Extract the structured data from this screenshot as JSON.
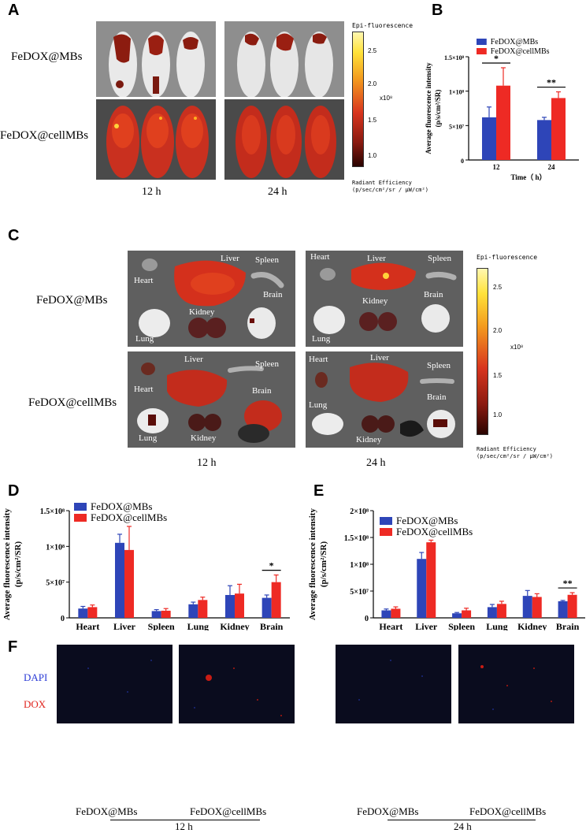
{
  "panels": {
    "A": "A",
    "B": "B",
    "C": "C",
    "D": "D",
    "E": "E",
    "F": "F"
  },
  "panelA": {
    "rows": [
      "FeDOX@MBs",
      "FeDOX@cellMBs"
    ],
    "times": [
      "12 h",
      "24 h"
    ],
    "colorbar": {
      "title": "Epi-fluorescence",
      "ticks": [
        "2.5",
        "2.0",
        "1.5",
        "1.0"
      ],
      "multiplier": "x10⁸",
      "unit_line1": "Radiant Efficiency",
      "unit_line2": "(p/sec/cm²/sr / µW/cm²)"
    }
  },
  "panelC": {
    "rows": [
      "FeDOX@MBs",
      "FeDOX@cellMBs"
    ],
    "times": [
      "12 h",
      "24 h"
    ],
    "organs": [
      "Heart",
      "Liver",
      "Spleen",
      "Kidney",
      "Brain",
      "Lung"
    ],
    "colorbar": {
      "title": "Epi-fluorescence",
      "ticks": [
        "2.5",
        "2.0",
        "1.5",
        "1.0"
      ],
      "multiplier": "x10⁸",
      "unit_line1": "Radiant Efficiency",
      "unit_line2": "(p/sec/cm²/sr / µW/cm²)"
    }
  },
  "panelF": {
    "stains": [
      "DAPI",
      "DOX"
    ],
    "stain_colors": [
      "#2b3bd6",
      "#e0231c"
    ],
    "labels": [
      "FeDOX@MBs",
      "FeDOX@cellMBs",
      "FeDOX@MBs",
      "FeDOX@cellMBs"
    ],
    "times": [
      "12 h",
      "24 h"
    ]
  },
  "colors": {
    "blue": "#2e45b8",
    "red": "#ee2a24"
  },
  "chart_data": [
    {
      "id": "B",
      "type": "bar",
      "categories": [
        "12",
        "24"
      ],
      "series": [
        {
          "name": "FeDOX@MBs",
          "values": [
            62000000,
            58000000
          ],
          "errors": [
            15000000,
            4000000
          ]
        },
        {
          "name": "FeDOX@cellMBs",
          "values": [
            108000000,
            90000000
          ],
          "errors": [
            26000000,
            9000000
          ]
        }
      ],
      "xlabel": "Time（ h）",
      "ylabel": "Average fluorescence intensity (p/s/cm²/SR)",
      "ylim": [
        0,
        150000000
      ],
      "yticks": [
        "0",
        "5×10⁷",
        "1×10⁸",
        "1.5×10⁸"
      ],
      "significance": [
        "*",
        "**"
      ],
      "legend": "top"
    },
    {
      "id": "D",
      "type": "bar",
      "categories": [
        "Heart",
        "Liver",
        "Spleen",
        "Lung",
        "Kidney",
        "Brain"
      ],
      "series": [
        {
          "name": "FeDOX@MBs",
          "values": [
            13000000,
            105000000,
            9500000,
            19000000,
            32000000,
            28000000
          ],
          "errors": [
            3000000,
            12000000,
            2000000,
            3000000,
            13000000,
            4000000
          ]
        },
        {
          "name": "FeDOX@cellMBs",
          "values": [
            15000000,
            95000000,
            10000000,
            25000000,
            34000000,
            50000000
          ],
          "errors": [
            3000000,
            33000000,
            3000000,
            4000000,
            13000000,
            10000000
          ]
        }
      ],
      "xlabel": "",
      "ylabel": "Average fluorescence intensity (p/s/cm²/SR)",
      "ylim": [
        0,
        150000000
      ],
      "yticks": [
        "0",
        "5×10⁷",
        "1×10⁸",
        "1.5×10⁸"
      ],
      "significance": [
        {
          "category": "Brain",
          "mark": "*"
        }
      ],
      "legend": "top-left"
    },
    {
      "id": "E",
      "type": "bar",
      "categories": [
        "Heart",
        "Liver",
        "Spleen",
        "Lung",
        "Kidney",
        "Brain"
      ],
      "series": [
        {
          "name": "FeDOX@MBs",
          "values": [
            14000000,
            110000000,
            8500000,
            20000000,
            41000000,
            31000000
          ],
          "errors": [
            2500000,
            12000000,
            1500000,
            5000000,
            10000000,
            1500000
          ]
        },
        {
          "name": "FeDOX@cellMBs",
          "values": [
            17000000,
            141000000,
            14000000,
            26000000,
            39000000,
            43000000
          ],
          "errors": [
            3500000,
            4000000,
            4000000,
            5000000,
            6000000,
            4000000
          ]
        }
      ],
      "xlabel": "",
      "ylabel": "Average fluorescence intensity (p/s/cm²/SR)",
      "ylim": [
        0,
        200000000
      ],
      "yticks": [
        "0",
        "5×10⁷",
        "1×10⁸",
        "1.5×10⁸",
        "2×10⁸"
      ],
      "significance": [
        {
          "category": "Brain",
          "mark": "**"
        }
      ],
      "legend": "top-left"
    }
  ]
}
